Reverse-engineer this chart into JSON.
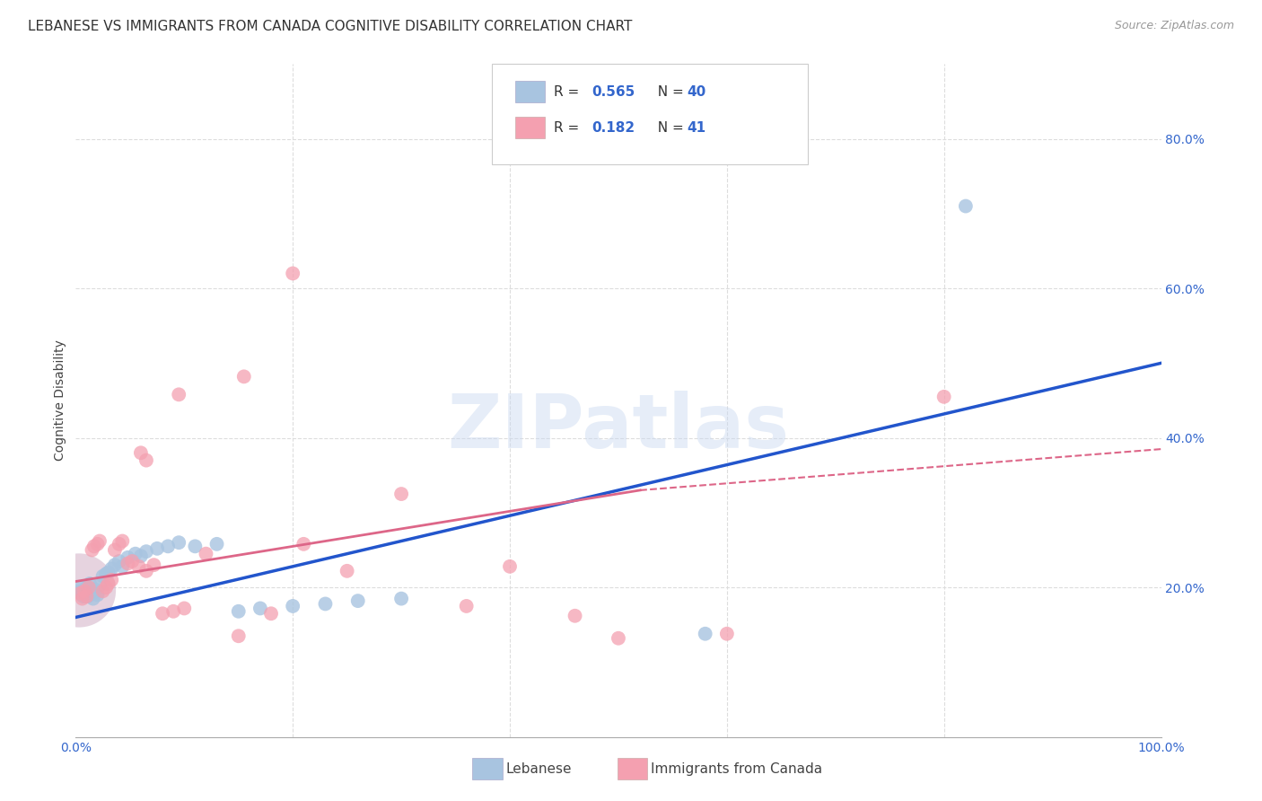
{
  "title": "LEBANESE VS IMMIGRANTS FROM CANADA COGNITIVE DISABILITY CORRELATION CHART",
  "source": "Source: ZipAtlas.com",
  "ylabel": "Cognitive Disability",
  "watermark": "ZIPatlas",
  "xlim": [
    0,
    1.0
  ],
  "ylim": [
    0,
    0.9
  ],
  "xticks": [
    0.0,
    0.2,
    0.4,
    0.6,
    0.8,
    1.0
  ],
  "xtick_labels": [
    "0.0%",
    "",
    "",
    "",
    "",
    "100.0%"
  ],
  "yticks": [
    0.2,
    0.4,
    0.6,
    0.8
  ],
  "ytick_labels": [
    "20.0%",
    "40.0%",
    "60.0%",
    "80.0%"
  ],
  "blue_scatter": [
    [
      0.004,
      0.195
    ],
    [
      0.005,
      0.2
    ],
    [
      0.006,
      0.19
    ],
    [
      0.007,
      0.188
    ],
    [
      0.008,
      0.196
    ],
    [
      0.009,
      0.192
    ],
    [
      0.01,
      0.2
    ],
    [
      0.011,
      0.188
    ],
    [
      0.012,
      0.195
    ],
    [
      0.013,
      0.205
    ],
    [
      0.014,
      0.198
    ],
    [
      0.015,
      0.192
    ],
    [
      0.016,
      0.185
    ],
    [
      0.018,
      0.197
    ],
    [
      0.02,
      0.19
    ],
    [
      0.022,
      0.203
    ],
    [
      0.025,
      0.215
    ],
    [
      0.028,
      0.218
    ],
    [
      0.03,
      0.22
    ],
    [
      0.033,
      0.225
    ],
    [
      0.036,
      0.23
    ],
    [
      0.04,
      0.235
    ],
    [
      0.043,
      0.228
    ],
    [
      0.048,
      0.24
    ],
    [
      0.055,
      0.245
    ],
    [
      0.06,
      0.242
    ],
    [
      0.065,
      0.248
    ],
    [
      0.075,
      0.252
    ],
    [
      0.085,
      0.255
    ],
    [
      0.095,
      0.26
    ],
    [
      0.11,
      0.255
    ],
    [
      0.13,
      0.258
    ],
    [
      0.15,
      0.168
    ],
    [
      0.17,
      0.172
    ],
    [
      0.2,
      0.175
    ],
    [
      0.23,
      0.178
    ],
    [
      0.26,
      0.182
    ],
    [
      0.3,
      0.185
    ],
    [
      0.58,
      0.138
    ],
    [
      0.82,
      0.71
    ]
  ],
  "pink_scatter": [
    [
      0.004,
      0.192
    ],
    [
      0.006,
      0.185
    ],
    [
      0.008,
      0.195
    ],
    [
      0.01,
      0.188
    ],
    [
      0.012,
      0.2
    ],
    [
      0.015,
      0.25
    ],
    [
      0.017,
      0.255
    ],
    [
      0.02,
      0.258
    ],
    [
      0.022,
      0.262
    ],
    [
      0.025,
      0.195
    ],
    [
      0.028,
      0.2
    ],
    [
      0.03,
      0.205
    ],
    [
      0.033,
      0.21
    ],
    [
      0.036,
      0.25
    ],
    [
      0.04,
      0.258
    ],
    [
      0.043,
      0.262
    ],
    [
      0.048,
      0.232
    ],
    [
      0.052,
      0.235
    ],
    [
      0.058,
      0.228
    ],
    [
      0.065,
      0.222
    ],
    [
      0.072,
      0.23
    ],
    [
      0.08,
      0.165
    ],
    [
      0.09,
      0.168
    ],
    [
      0.1,
      0.172
    ],
    [
      0.12,
      0.245
    ],
    [
      0.15,
      0.135
    ],
    [
      0.18,
      0.165
    ],
    [
      0.21,
      0.258
    ],
    [
      0.25,
      0.222
    ],
    [
      0.3,
      0.325
    ],
    [
      0.36,
      0.175
    ],
    [
      0.4,
      0.228
    ],
    [
      0.46,
      0.162
    ],
    [
      0.5,
      0.132
    ],
    [
      0.6,
      0.138
    ],
    [
      0.2,
      0.62
    ],
    [
      0.155,
      0.482
    ],
    [
      0.095,
      0.458
    ],
    [
      0.065,
      0.37
    ],
    [
      0.06,
      0.38
    ],
    [
      0.8,
      0.455
    ]
  ],
  "blue_line": {
    "x0": 0.0,
    "y0": 0.16,
    "x1": 1.0,
    "y1": 0.5
  },
  "pink_line_solid": {
    "x0": 0.0,
    "y0": 0.208,
    "x1": 0.52,
    "y1": 0.33
  },
  "pink_line_dashed": {
    "x0": 0.52,
    "y0": 0.33,
    "x1": 1.0,
    "y1": 0.385
  },
  "blue_scatter_color": "#a8c4e0",
  "pink_scatter_color": "#f4a0b0",
  "blue_line_color": "#2255cc",
  "pink_line_color": "#dd6688",
  "tick_color": "#3366cc",
  "background_color": "#ffffff",
  "grid_color": "#dddddd",
  "title_fontsize": 11,
  "axis_fontsize": 10,
  "tick_fontsize": 10,
  "source_fontsize": 9
}
